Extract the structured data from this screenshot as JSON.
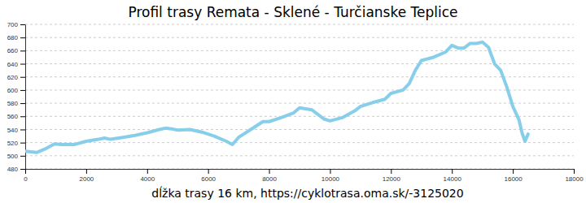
{
  "chart_data": {
    "type": "line",
    "title": "Profil trasy Remata - Sklené - Turčianske Teplice",
    "x_label": "dĺžka trasy 16 km, https://cyklotrasa.oma.sk/-3125020",
    "x": [
      0,
      370,
      640,
      960,
      1200,
      1600,
      2000,
      2400,
      2600,
      2800,
      3200,
      3600,
      4000,
      4400,
      4600,
      4800,
      5000,
      5400,
      5800,
      6200,
      6600,
      6800,
      7000,
      7400,
      7800,
      8000,
      8400,
      8800,
      9000,
      9400,
      9800,
      10000,
      10400,
      10800,
      11000,
      11400,
      11800,
      12000,
      12400,
      12600,
      12800,
      13000,
      13400,
      13800,
      14000,
      14200,
      14400,
      14600,
      14800,
      15000,
      15200,
      15400,
      15600,
      15800,
      16000,
      16200,
      16300,
      16400,
      16500
    ],
    "values": [
      507,
      505,
      510,
      518,
      517,
      517,
      522,
      525,
      527,
      525,
      528,
      531,
      535,
      540,
      542,
      541,
      539,
      540,
      536,
      530,
      522,
      517,
      528,
      540,
      552,
      552,
      558,
      565,
      573,
      570,
      556,
      553,
      558,
      568,
      575,
      581,
      586,
      595,
      600,
      610,
      630,
      645,
      650,
      658,
      668,
      664,
      664,
      671,
      671,
      673,
      665,
      640,
      630,
      605,
      575,
      555,
      535,
      522,
      533
    ],
    "color": "#87ceeb",
    "xlim": [
      0,
      18000
    ],
    "xticks": [
      0,
      2000,
      4000,
      6000,
      8000,
      10000,
      12000,
      14000,
      16000,
      18000
    ],
    "ylim": [
      480,
      700
    ],
    "yticks": [
      480,
      500,
      520,
      540,
      560,
      580,
      600,
      620,
      640,
      660,
      680,
      700
    ],
    "grid": true
  }
}
